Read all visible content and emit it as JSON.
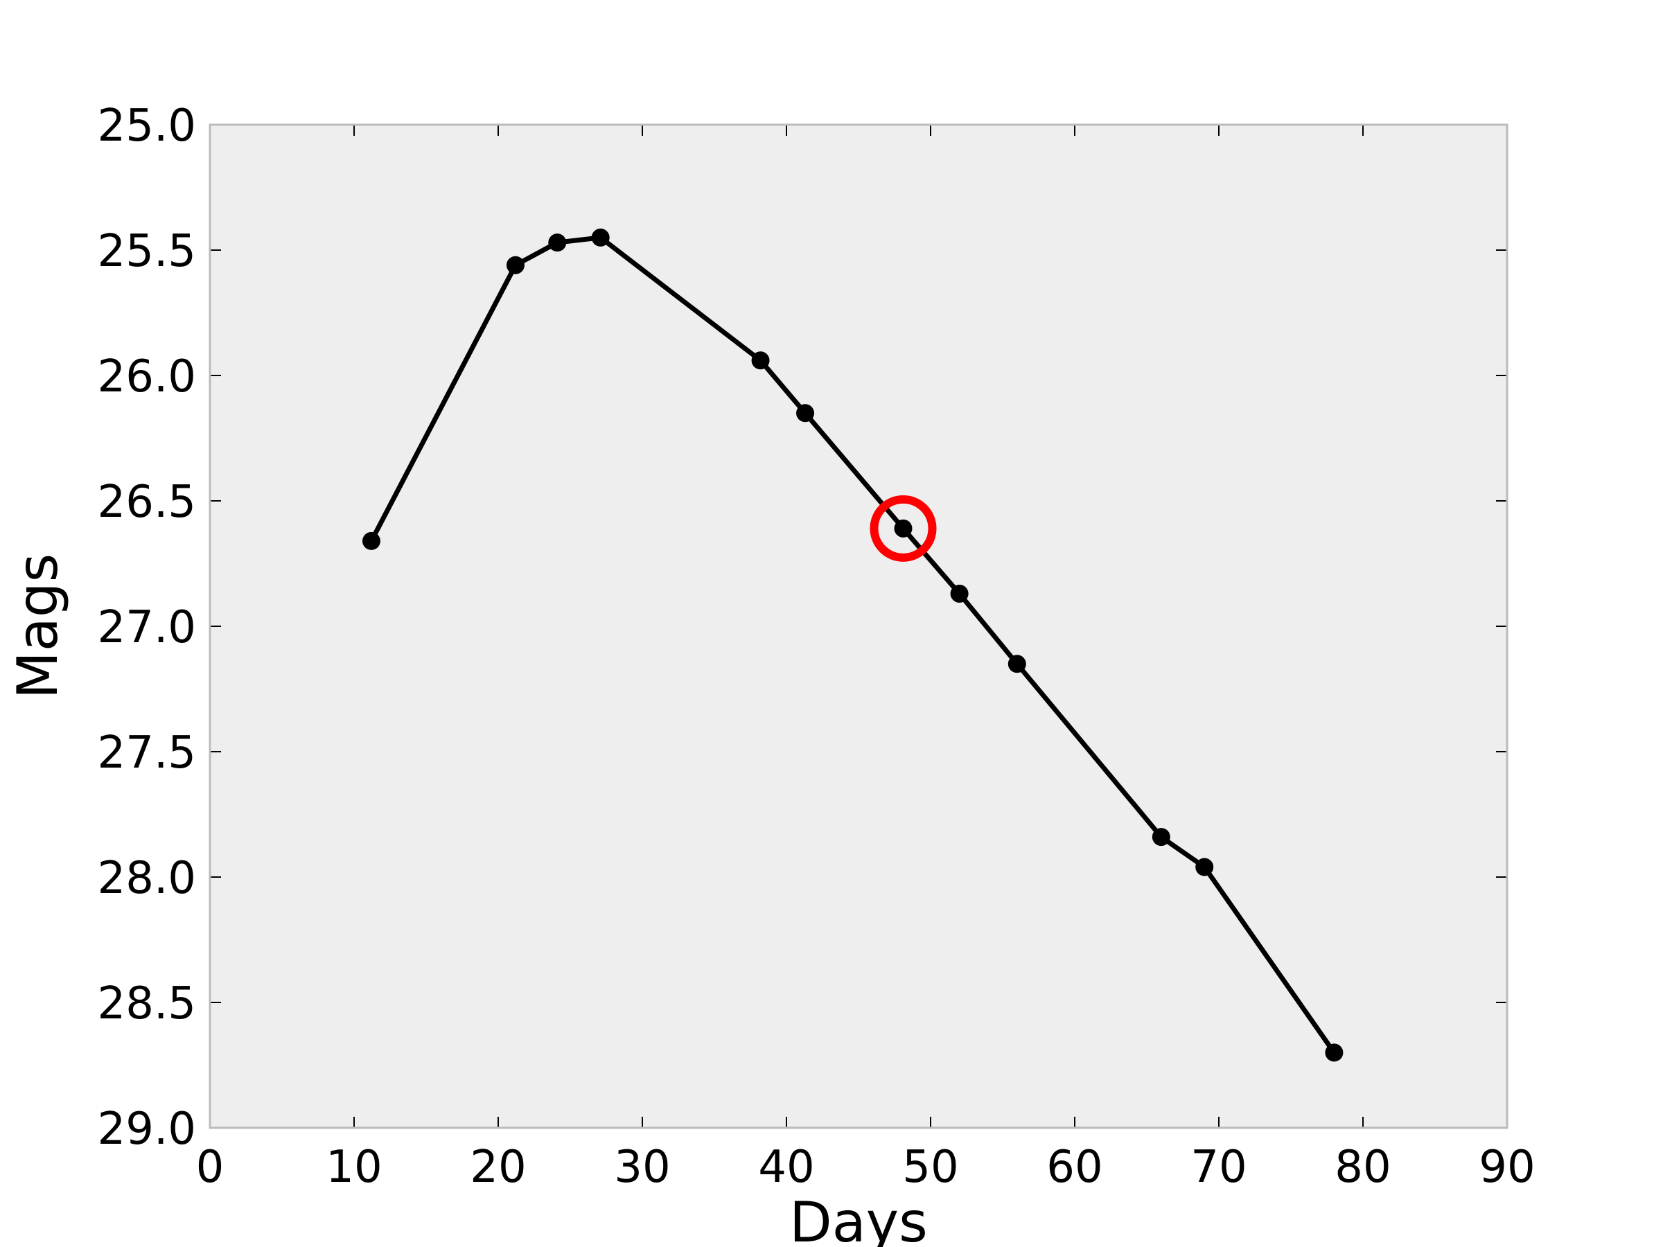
{
  "chart_data": {
    "type": "line",
    "xlabel": "Days",
    "ylabel": "Mags",
    "xlim": [
      0,
      90
    ],
    "ylim": [
      25.0,
      29.0
    ],
    "y_inverted": true,
    "grid": false,
    "background_color": "#eeeeee",
    "line_color": "#000000",
    "highlight_color": "#ff0000",
    "x_ticks": [
      0,
      10,
      20,
      30,
      40,
      50,
      60,
      70,
      80,
      90
    ],
    "x_tick_labels": [
      "0",
      "10",
      "20",
      "30",
      "40",
      "50",
      "60",
      "70",
      "80",
      "90"
    ],
    "y_ticks": [
      25.0,
      25.5,
      26.0,
      26.5,
      27.0,
      27.5,
      28.0,
      28.5,
      29.0
    ],
    "y_tick_labels": [
      "25.0",
      "25.5",
      "26.0",
      "26.5",
      "27.0",
      "27.5",
      "28.0",
      "28.5",
      "29.0"
    ],
    "series": [
      {
        "x": [
          11.2,
          21.2,
          24.1,
          27.1,
          38.2,
          41.3,
          48.1,
          52.0,
          56.0,
          66.0,
          69.0,
          78.0
        ],
        "y": [
          26.66,
          25.56,
          25.47,
          25.45,
          25.94,
          26.15,
          26.61,
          26.87,
          27.15,
          27.84,
          27.96,
          28.7
        ]
      }
    ],
    "highlight": {
      "x": 48.1,
      "y": 26.61,
      "marker": "open-circle"
    }
  }
}
